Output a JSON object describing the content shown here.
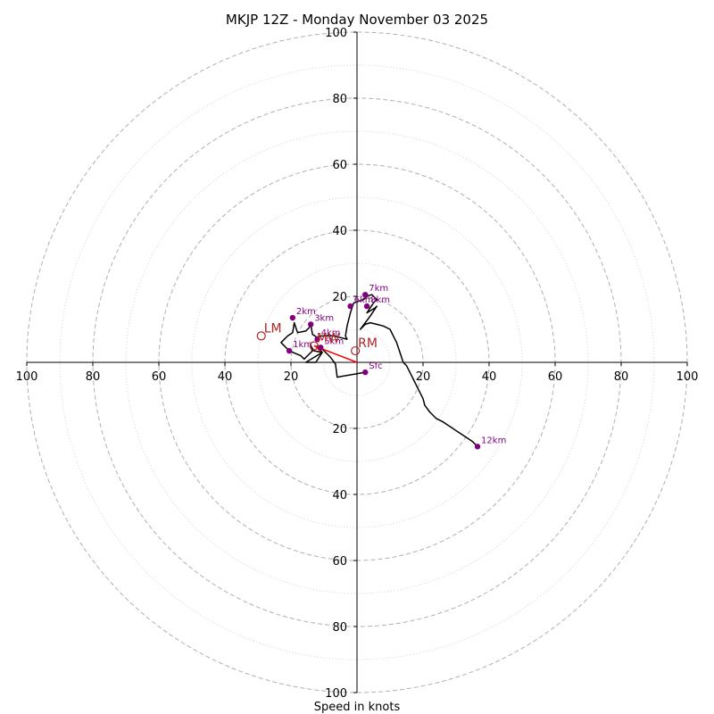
{
  "chart_data": {
    "type": "hodograph",
    "title": "MKJP 12Z - Monday November 03 2025",
    "xlabel": "Speed in knots",
    "units": "knots",
    "max_speed": 100,
    "ring_step": 10,
    "major_rings": [
      20,
      40,
      60,
      80,
      100
    ],
    "minor_rings": [
      10,
      30,
      50,
      70,
      90
    ],
    "colors": {
      "axis": "#000000",
      "grid": "#b0b0b0",
      "trace": "#000000",
      "points": "#800080",
      "storm": "#b22222",
      "mean_wind_vector": "#ff0000"
    },
    "x_ticks": [
      {
        "value": -100,
        "label": "100"
      },
      {
        "value": -80,
        "label": "80"
      },
      {
        "value": -60,
        "label": "60"
      },
      {
        "value": -40,
        "label": "40"
      },
      {
        "value": -20,
        "label": "20"
      },
      {
        "value": 20,
        "label": "20"
      },
      {
        "value": 40,
        "label": "40"
      },
      {
        "value": 60,
        "label": "60"
      },
      {
        "value": 80,
        "label": "80"
      },
      {
        "value": 100,
        "label": "100"
      }
    ],
    "y_ticks": [
      {
        "value": 100,
        "label": "100"
      },
      {
        "value": 80,
        "label": "80"
      },
      {
        "value": 60,
        "label": "60"
      },
      {
        "value": 40,
        "label": "40"
      },
      {
        "value": 20,
        "label": "20"
      },
      {
        "value": -20,
        "label": "20"
      },
      {
        "value": -40,
        "label": "40"
      },
      {
        "value": -60,
        "label": "60"
      },
      {
        "value": -80,
        "label": "80"
      },
      {
        "value": -100,
        "label": "100"
      }
    ],
    "trace": [
      [
        2.5,
        -3
      ],
      [
        -6,
        -4.5
      ],
      [
        -6.5,
        -0.5
      ],
      [
        -8,
        1.5
      ],
      [
        -11,
        4.5
      ],
      [
        -12,
        5
      ],
      [
        -10.5,
        3
      ],
      [
        -15.5,
        0
      ],
      [
        -12.5,
        0
      ],
      [
        -10.5,
        3
      ],
      [
        -13,
        3.5
      ],
      [
        -14,
        5
      ],
      [
        -14,
        4.5
      ],
      [
        -13.5,
        3.5
      ],
      [
        -16,
        1
      ],
      [
        -17,
        2
      ],
      [
        -20.5,
        3.5
      ],
      [
        -23,
        6
      ],
      [
        -21,
        8
      ],
      [
        -19.5,
        9
      ],
      [
        -19,
        12
      ],
      [
        -18,
        9
      ],
      [
        -15.5,
        9.5
      ],
      [
        -14.5,
        10.5
      ],
      [
        -14,
        11.5
      ],
      [
        -13.5,
        8.5
      ],
      [
        -12,
        7.5
      ],
      [
        -11,
        8
      ],
      [
        -7,
        8
      ],
      [
        -3,
        7
      ],
      [
        -3.5,
        8
      ],
      [
        -3,
        11
      ],
      [
        -2,
        15
      ],
      [
        -1,
        18
      ],
      [
        2,
        19
      ],
      [
        3,
        20
      ],
      [
        4.5,
        20.5
      ],
      [
        5,
        20
      ],
      [
        6,
        19
      ],
      [
        5,
        18
      ],
      [
        3,
        15
      ],
      [
        5.5,
        16.5
      ],
      [
        6,
        17
      ],
      [
        4,
        14
      ],
      [
        1,
        10
      ],
      [
        2.5,
        11.5
      ],
      [
        4,
        12
      ],
      [
        6,
        11.5
      ],
      [
        8,
        11
      ],
      [
        10,
        10
      ],
      [
        11,
        8
      ],
      [
        12,
        6
      ],
      [
        13,
        3
      ],
      [
        14,
        0
      ],
      [
        15,
        -1
      ],
      [
        16,
        -3
      ],
      [
        17,
        -5
      ],
      [
        18,
        -7
      ],
      [
        19,
        -9
      ],
      [
        20,
        -11
      ],
      [
        20.5,
        -13
      ],
      [
        22,
        -15
      ],
      [
        24,
        -17
      ],
      [
        26,
        -18
      ],
      [
        29,
        -20
      ],
      [
        32,
        -22
      ],
      [
        35,
        -24
      ],
      [
        36.5,
        -25.5
      ]
    ],
    "height_points": [
      {
        "label": "Sfc",
        "u": 2.5,
        "v": -3
      },
      {
        "label": "1km",
        "u": -20.5,
        "v": 3.5
      },
      {
        "label": "2km",
        "u": -19.5,
        "v": 13.5
      },
      {
        "label": "3km",
        "u": -14,
        "v": 11.5
      },
      {
        "label": "4km",
        "u": -12,
        "v": 7
      },
      {
        "label": "5km",
        "u": -11,
        "v": 4.5
      },
      {
        "label": "6km",
        "u": -2,
        "v": 17
      },
      {
        "label": "7km",
        "u": 2.5,
        "v": 20.5
      },
      {
        "label": "8km",
        "u": 3,
        "v": 17
      },
      {
        "label": "12km",
        "u": 36.5,
        "v": -25.5
      }
    ],
    "storm_motions": [
      {
        "label": "LM",
        "u": -29,
        "v": 8
      },
      {
        "label": "MW",
        "u": -13,
        "v": 5
      },
      {
        "label": "RM",
        "u": -0.5,
        "v": 3.5
      }
    ],
    "mean_wind_vector": {
      "u": -13,
      "v": 5
    }
  }
}
